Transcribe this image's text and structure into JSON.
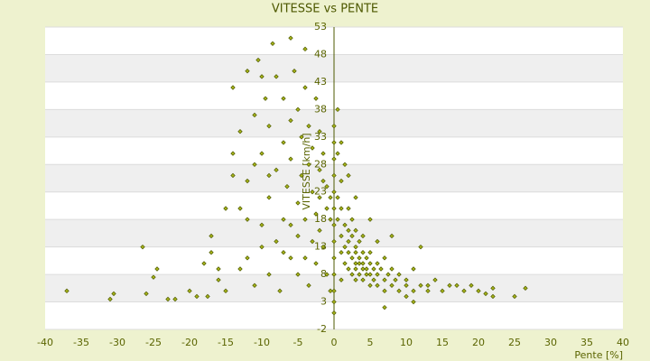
{
  "chart_data": {
    "type": "scatter",
    "title": "VITESSE vs PENTE",
    "x_label": "Pente [%]",
    "y_label": "VITESSE [km/h]",
    "color": "#a8b418",
    "stroke": "#4d5a00",
    "grid": true,
    "xlim": [
      -40,
      40
    ],
    "xticks": [
      -40,
      -35,
      -30,
      -25,
      -20,
      -15,
      -10,
      -5,
      0,
      5,
      10,
      15,
      20,
      25,
      30,
      35,
      40
    ],
    "ylim": [
      -2,
      53
    ],
    "yticks": [
      -2,
      3,
      8,
      13,
      18,
      23,
      28,
      33,
      38,
      43,
      48,
      53
    ],
    "x": [
      -37,
      -31,
      -30.5,
      -26.5,
      -26,
      -25,
      -24.5,
      -23,
      -22,
      -19,
      -17.5,
      -17,
      -17,
      -16,
      -15,
      -15,
      -14,
      -14,
      -13,
      -13,
      -13,
      -12,
      -12,
      -12,
      -11,
      -11,
      -10.5,
      -10,
      -10,
      -10,
      -9.5,
      -9,
      -9,
      -9,
      -8.5,
      -8,
      -8,
      -8,
      -7.5,
      -7,
      -7,
      -7,
      -6.5,
      -6,
      -6,
      -6,
      -6,
      -5.5,
      -5,
      -5,
      -5,
      -5,
      -4.5,
      -4.5,
      -4,
      -4,
      -4,
      -4,
      -3.5,
      -3.5,
      -3.5,
      -3,
      -3,
      -3,
      -2.5,
      -2.5,
      -2.5,
      -2,
      -2,
      -2,
      -2,
      -1.5,
      -1.5,
      -1.5,
      -1,
      -1,
      -1,
      -0.5,
      -0.5,
      -0.5,
      -11,
      -12,
      -14,
      -16,
      -18,
      -20,
      -7,
      -9,
      -10,
      -6,
      0,
      0,
      0,
      0,
      0,
      0,
      0,
      0,
      0,
      0,
      0,
      0,
      0,
      0.5,
      0.5,
      0.5,
      1,
      1,
      1,
      1,
      1,
      1.5,
      1.5,
      1.5,
      1.5,
      2,
      2,
      2,
      2,
      2,
      2.5,
      2.5,
      2.5,
      2.5,
      3,
      3,
      3,
      3,
      3,
      3,
      3.5,
      3.5,
      3.5,
      3.5,
      4,
      4,
      4,
      4,
      4,
      4.5,
      4.5,
      4.5,
      5,
      5,
      5,
      5,
      5,
      5.5,
      5.5,
      6,
      6,
      6,
      6,
      6.5,
      7,
      7,
      7,
      7.5,
      8,
      8,
      8,
      8.5,
      9,
      9,
      10,
      10,
      10,
      11,
      11,
      12,
      12,
      13,
      13,
      14,
      15,
      16,
      17,
      18,
      19,
      20,
      21,
      22,
      22,
      25,
      26.5,
      1,
      2,
      0.5,
      3,
      7,
      11
    ],
    "values": [
      5,
      3.5,
      4.5,
      13,
      4.5,
      7.5,
      9,
      3.5,
      3.5,
      4,
      4,
      15,
      12,
      9,
      5,
      20,
      42,
      30,
      20,
      9,
      34,
      45,
      25,
      11,
      37,
      6,
      47,
      30,
      17,
      13,
      40,
      35,
      22,
      8,
      50,
      27,
      44,
      14,
      5,
      32,
      18,
      40,
      24,
      51,
      36,
      11,
      29,
      45,
      21,
      38,
      15,
      8,
      33,
      26,
      49,
      42,
      18,
      11,
      35,
      28,
      6,
      23,
      31,
      14,
      40,
      19,
      10,
      27,
      34,
      22,
      16,
      25,
      30,
      13,
      20,
      24,
      8,
      18,
      22,
      5,
      28,
      18,
      26,
      7,
      10,
      5,
      12,
      26,
      44,
      17,
      3,
      5,
      8,
      11,
      14,
      17,
      20,
      23,
      26,
      29,
      32,
      35,
      1,
      22,
      18,
      38,
      20,
      25,
      15,
      12,
      7,
      17,
      13,
      10,
      28,
      16,
      12,
      9,
      20,
      14,
      11,
      15,
      8,
      18,
      10,
      13,
      12,
      9,
      16,
      7,
      11,
      8,
      14,
      10,
      9,
      12,
      10,
      7,
      15,
      11,
      8,
      9,
      10,
      8,
      12,
      6,
      18,
      9,
      7,
      8,
      10,
      6,
      14,
      9,
      7,
      11,
      5,
      8,
      6,
      9,
      15,
      7,
      5,
      8,
      6,
      4,
      7,
      5,
      9,
      6,
      13,
      5,
      6,
      7,
      5,
      6,
      6,
      5,
      6,
      5,
      4.5,
      5.5,
      4,
      4,
      5.5,
      32,
      26,
      30,
      22,
      2,
      3
    ]
  }
}
